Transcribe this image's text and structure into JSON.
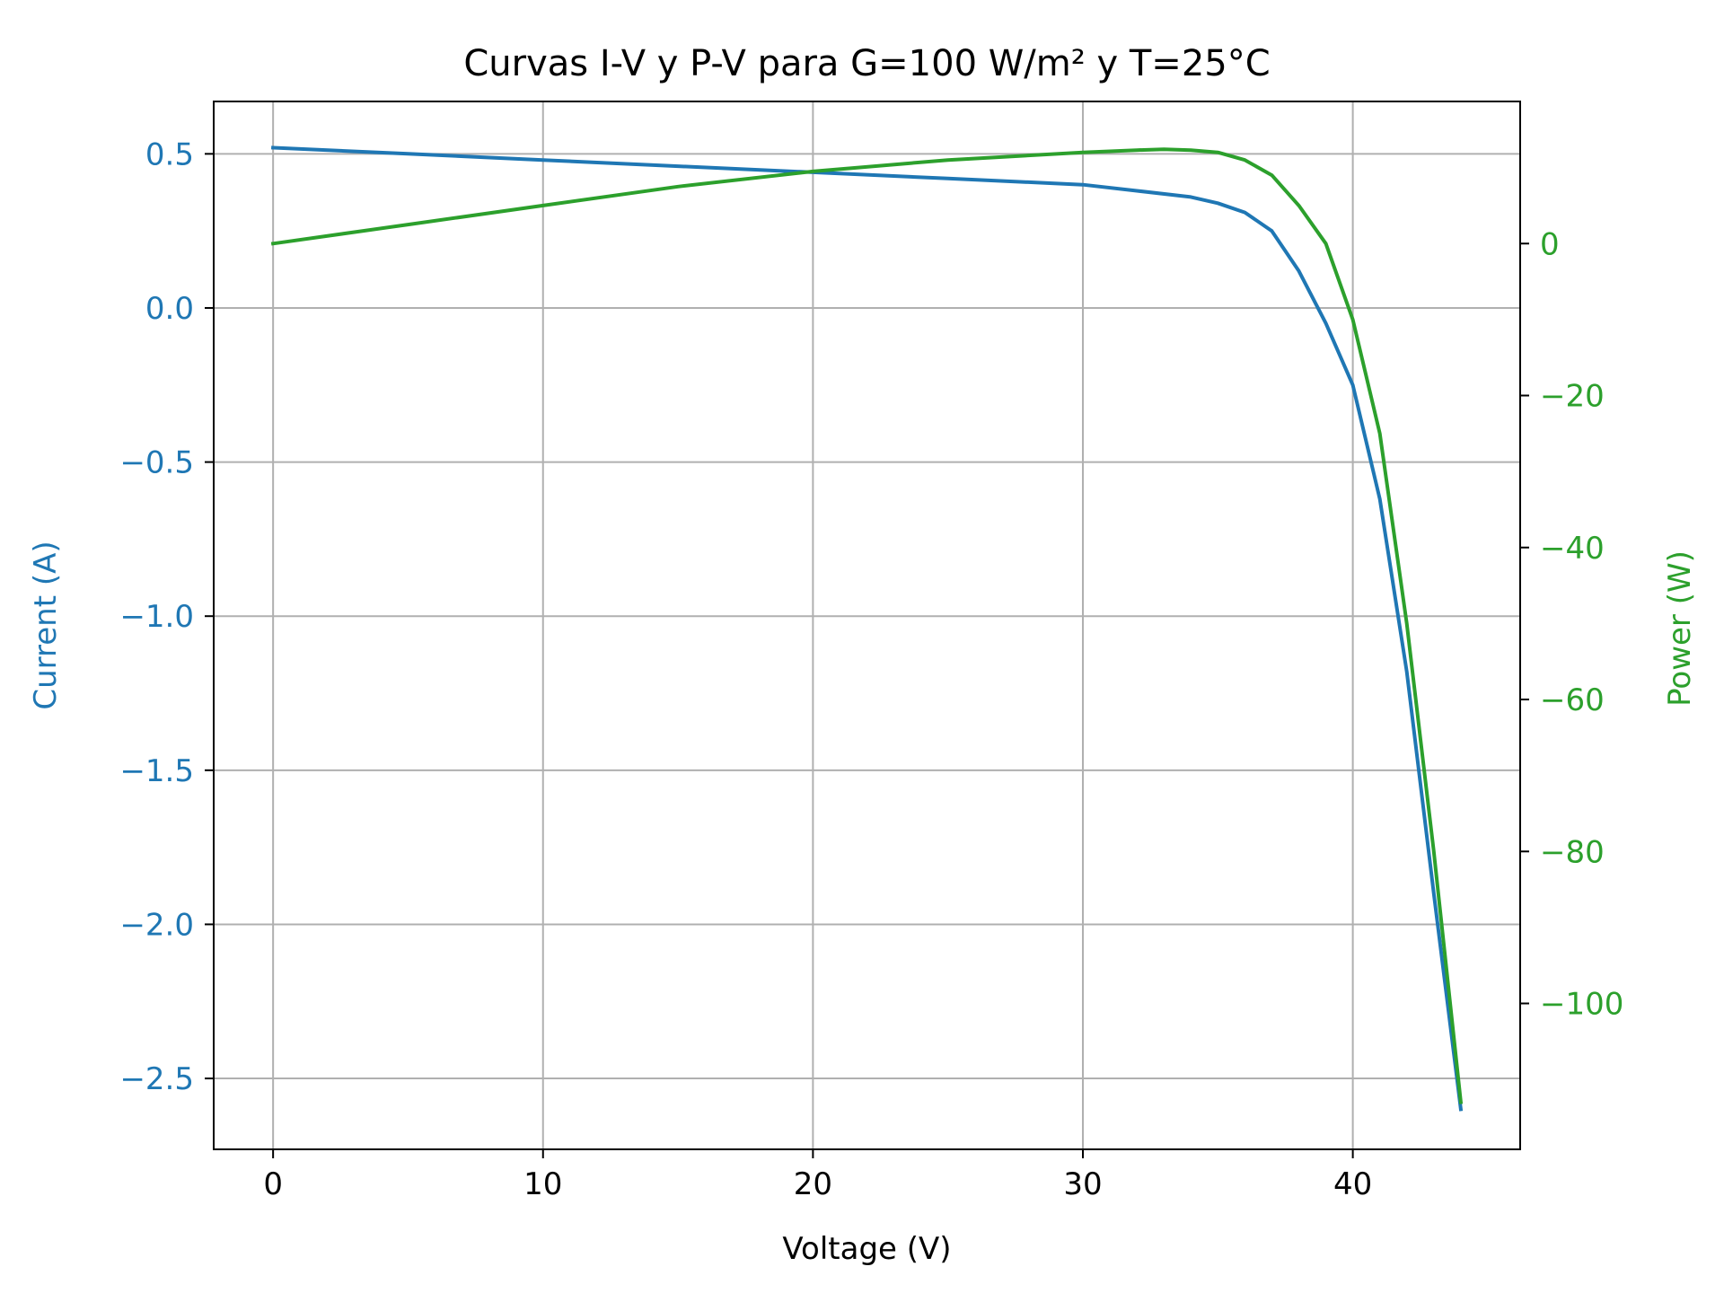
{
  "chart_data": {
    "type": "line",
    "title": "Curvas I-V y P-V para G=100 W/m² y T=25°C",
    "xlabel": "Voltage (V)",
    "ylabel_left": "Current (A)",
    "ylabel_right": "Power (W)",
    "xlim": [
      -2.2,
      46.2
    ],
    "ylim_left": [
      -2.73,
      0.67
    ],
    "ylim_right": [
      -119.2,
      18.7
    ],
    "x_ticks": [
      0,
      10,
      20,
      30,
      40
    ],
    "x_tick_labels": [
      "0",
      "10",
      "20",
      "30",
      "40"
    ],
    "y_left_ticks": [
      0.5,
      0.0,
      -0.5,
      -1.0,
      -1.5,
      -2.0,
      -2.5
    ],
    "y_left_tick_labels": [
      "0.5",
      "0.0",
      "−0.5",
      "−1.0",
      "−1.5",
      "−2.0",
      "−2.5"
    ],
    "y_right_ticks": [
      0,
      -20,
      -40,
      -60,
      -80,
      -100
    ],
    "y_right_tick_labels": [
      "0",
      "−20",
      "−40",
      "−60",
      "−80",
      "−100"
    ],
    "grid": true,
    "colors": {
      "current": "#1f77b4",
      "power": "#2ca02c",
      "grid": "#b0b0b0"
    },
    "series": [
      {
        "axis": "left",
        "x": [
          0,
          5,
          10,
          15,
          20,
          25,
          30,
          32,
          34,
          35,
          36,
          37,
          38,
          39,
          40,
          41,
          42,
          43,
          44
        ],
        "values": [
          0.52,
          0.5,
          0.48,
          0.46,
          0.44,
          0.42,
          0.4,
          0.38,
          0.36,
          0.34,
          0.31,
          0.25,
          0.12,
          -0.05,
          -0.25,
          -0.62,
          -1.18,
          -1.9,
          -2.6
        ]
      },
      {
        "axis": "right",
        "x": [
          0,
          5,
          10,
          15,
          20,
          25,
          30,
          32,
          33,
          34,
          35,
          36,
          37,
          38,
          39,
          40,
          41,
          42,
          43,
          44
        ],
        "values": [
          0,
          2.5,
          5,
          7.5,
          9.5,
          11,
          12,
          12.3,
          12.4,
          12.3,
          12,
          11,
          9,
          5,
          0,
          -10,
          -25,
          -50,
          -80,
          -113
        ]
      }
    ]
  }
}
